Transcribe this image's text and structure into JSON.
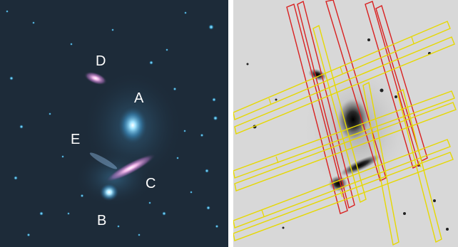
{
  "left_panel": {
    "labels": {
      "a": "A",
      "b": "B",
      "c": "C",
      "d": "D",
      "e": "E"
    },
    "colors": {
      "background": "#1c2a38",
      "star": "#3aa7d8",
      "galaxy_core": "#ffffff",
      "galaxy_pink": "#e58ad6"
    }
  },
  "right_panel": {
    "colors": {
      "background": "#d6d6d6",
      "slit_red": "#d92020",
      "slit_yellow": "#e6d800",
      "galaxy": "#111111"
    }
  }
}
